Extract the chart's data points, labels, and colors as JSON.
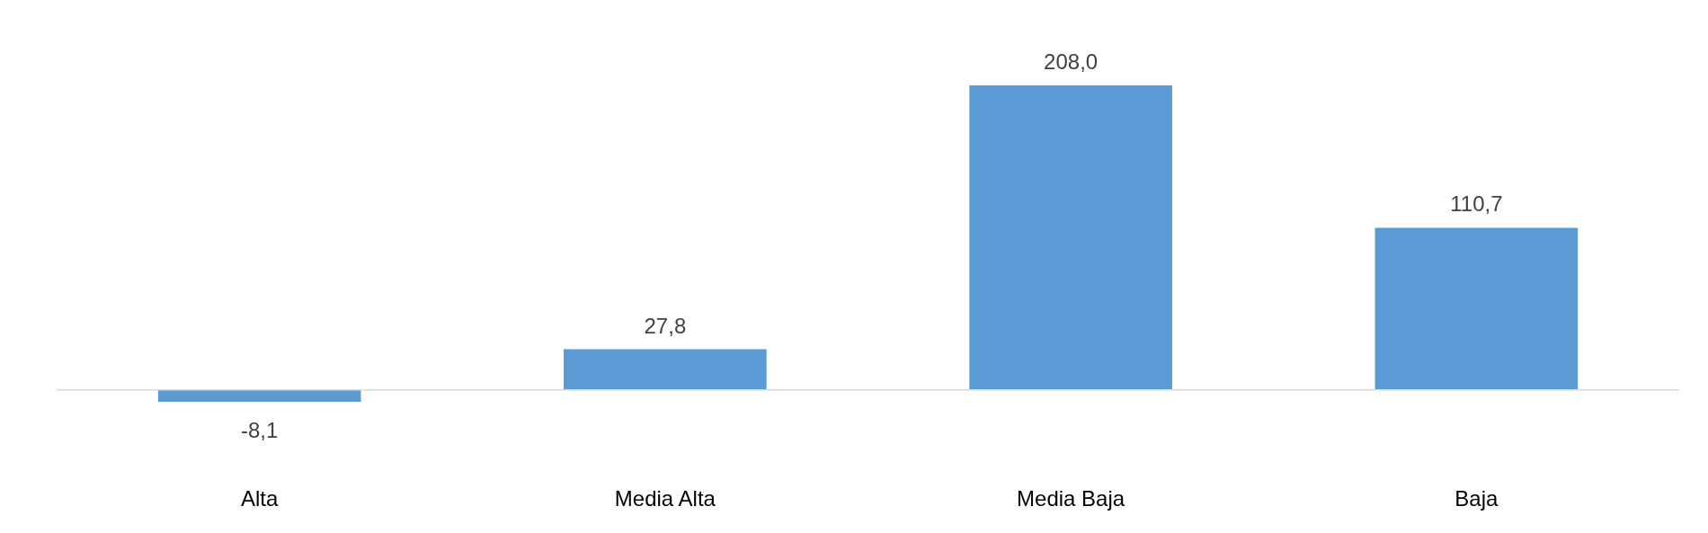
{
  "chart_data": {
    "type": "bar",
    "categories": [
      "Alta",
      "Media Alta",
      "Media Baja",
      "Baja"
    ],
    "values": [
      -8.1,
      27.8,
      208.0,
      110.7
    ],
    "value_labels": [
      "-8,1",
      "27,8",
      "208,0",
      "110,7"
    ],
    "color": "#5b9bd5"
  }
}
